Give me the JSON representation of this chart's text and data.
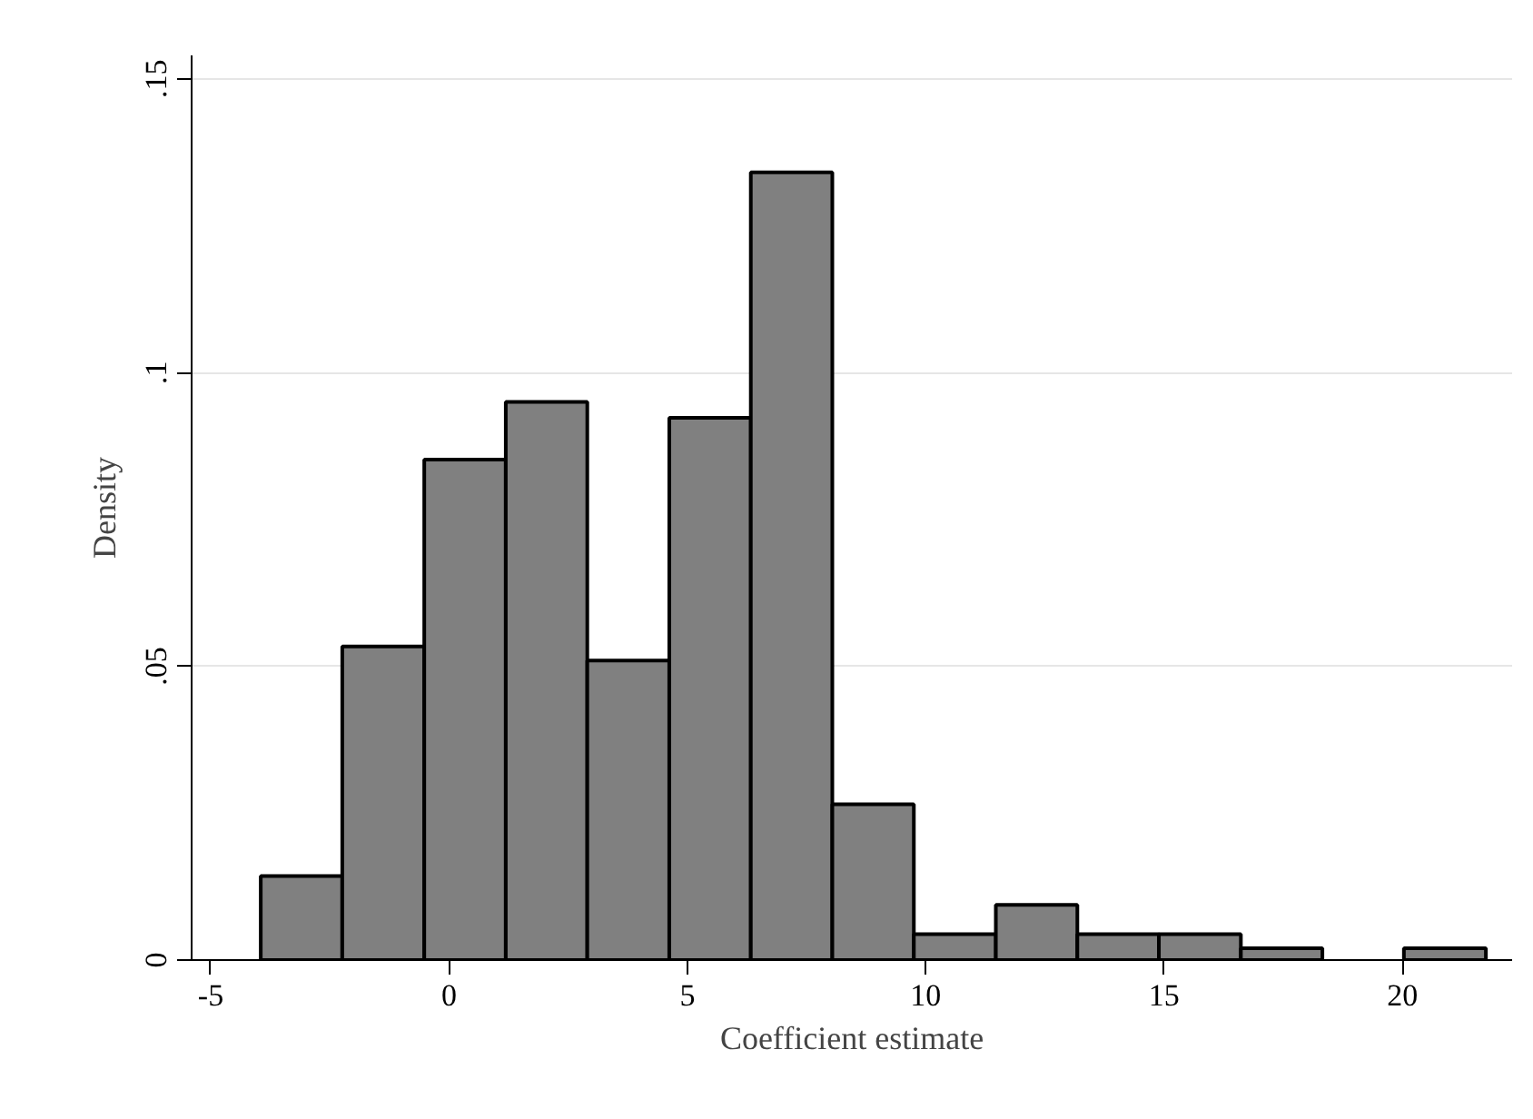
{
  "chart_data": {
    "type": "histogram",
    "xlabel": "Coefficient estimate",
    "ylabel": "Density",
    "bins": [
      -3.95,
      -2.24,
      -0.52,
      1.19,
      2.9,
      4.62,
      6.33,
      8.04,
      9.75,
      11.47,
      13.18,
      14.89,
      16.61,
      18.32,
      20.03,
      21.75
    ],
    "values": [
      0.0143,
      0.0534,
      0.0852,
      0.095,
      0.051,
      0.0923,
      0.1341,
      0.0265,
      0.0044,
      0.0094,
      0.0044,
      0.0044,
      0.002,
      0,
      0.002
    ],
    "color": "#808080",
    "xlim": [
      -5.4,
      22.3
    ],
    "ylim": [
      0,
      0.154
    ],
    "xticks": [
      -5,
      0,
      5,
      10,
      15,
      20
    ],
    "yticks": [
      0,
      {
        "value": 0.05,
        "label": ".05"
      },
      {
        "value": 0.1,
        "label": ".1"
      },
      {
        "value": 0.15,
        "label": ".15"
      }
    ],
    "grid": "y"
  }
}
